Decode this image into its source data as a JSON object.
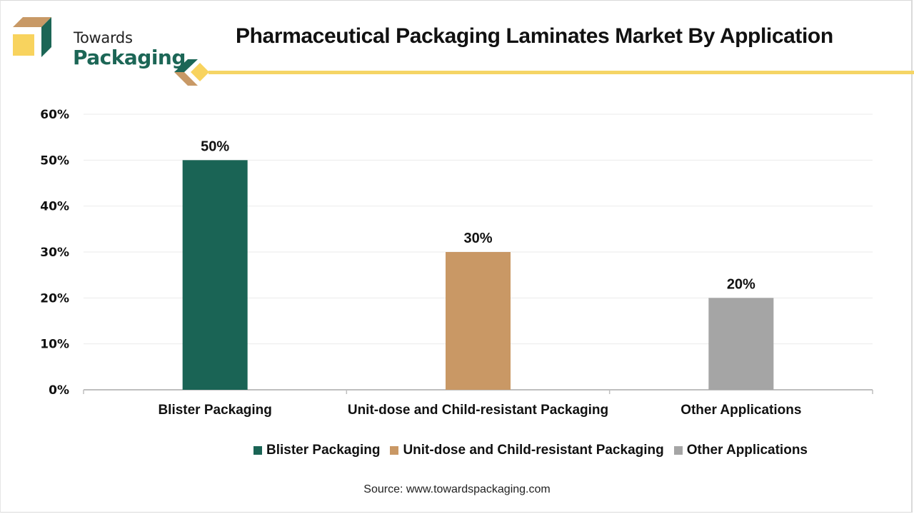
{
  "brand": {
    "line1": "Towards",
    "line2": "Packaging",
    "colors": {
      "green": "#1c6656",
      "tan": "#c89966",
      "yellow": "#f8d35e"
    }
  },
  "source": "Source: www.towardspackaging.com",
  "chart_data": {
    "type": "bar",
    "title": "Pharmaceutical Packaging Laminates Market By Application",
    "xlabel": "",
    "ylabel": "",
    "categories": [
      "Blister Packaging",
      "Unit-dose and Child-resistant Packaging",
      "Other Applications"
    ],
    "values": [
      50,
      30,
      20
    ],
    "data_labels": [
      "50%",
      "30%",
      "20%"
    ],
    "colors": [
      "#1a6455",
      "#c99865",
      "#a5a5a5"
    ],
    "ylim": [
      0,
      60
    ],
    "yticks": [
      0,
      10,
      20,
      30,
      40,
      50,
      60
    ],
    "ytick_labels": [
      "0%",
      "10%",
      "20%",
      "30%",
      "40%",
      "50%",
      "60%"
    ],
    "grid": true,
    "legend": {
      "placement": "bottom",
      "entries": [
        "Blister Packaging",
        "Unit-dose and Child-resistant Packaging",
        "Other Applications"
      ]
    }
  }
}
